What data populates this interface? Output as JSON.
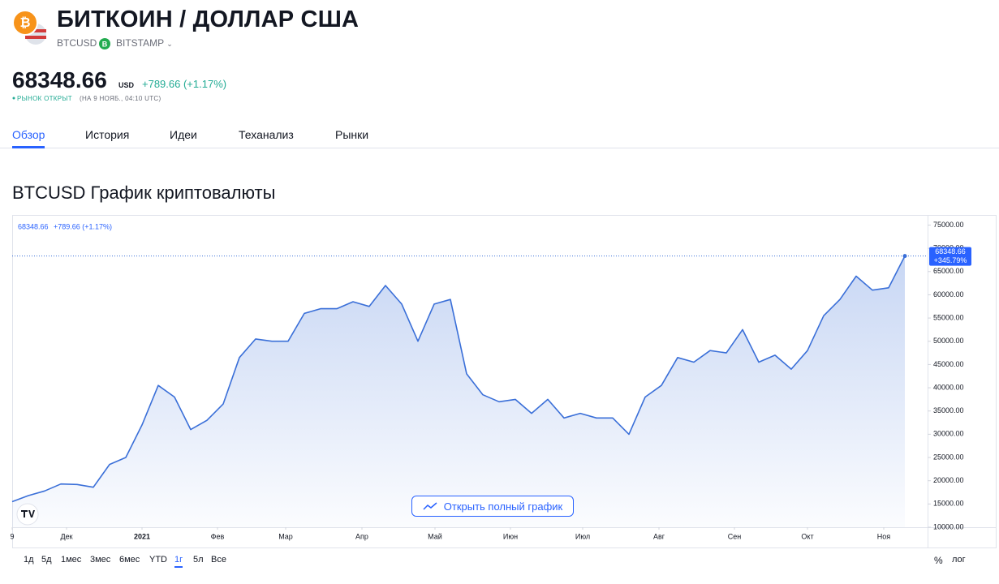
{
  "header": {
    "title": "БИТКОИН / ДОЛЛАР США",
    "symbol": "BTCUSD",
    "exchange_icon": "B",
    "exchange": "BITSTAMP",
    "logo": "₿",
    "price": "68348.66",
    "currency": "USD",
    "change": "+789.66 (+1.17%)",
    "status": "РЫНОК ОТКРЫТ",
    "status_time": "(НА 9 НОЯБ., 04:10 UTC)"
  },
  "tabs": [
    "Обзор",
    "История",
    "Идеи",
    "Теханализ",
    "Рынки"
  ],
  "chart_data": {
    "type": "area",
    "title": "BTCUSD График криптовалюты",
    "legend_price": "68348.66",
    "legend_change": "+789.66 (+1.17%)",
    "last_change": "+345.79%",
    "series": [
      {
        "name": "BTCUSD",
        "color": "#3a6fd8",
        "values": [
          15500,
          16800,
          17800,
          19300,
          19200,
          18600,
          23500,
          25000,
          32000,
          40500,
          38000,
          31000,
          33000,
          36500,
          46500,
          50500,
          50000,
          50000,
          56000,
          57000,
          57000,
          58500,
          57500,
          62000,
          58000,
          50000,
          58000,
          59000,
          43000,
          38500,
          37000,
          37500,
          34500,
          37500,
          33500,
          34500,
          33500,
          33500,
          30000,
          38000,
          40500,
          46500,
          45500,
          48000,
          47500,
          52500,
          45500,
          47000,
          44000,
          48000,
          55500,
          59000,
          64000,
          61000,
          61500,
          68348.66
        ]
      }
    ],
    "xlim": [
      0,
      56.4
    ],
    "xticks": [
      {
        "value": 0,
        "label": "9"
      },
      {
        "value": 3.35,
        "label": "Дек"
      },
      {
        "value": 8,
        "label": "2021"
      },
      {
        "value": 12.65,
        "label": "Фев"
      },
      {
        "value": 16.85,
        "label": "Мар"
      },
      {
        "value": 21.55,
        "label": "Апр"
      },
      {
        "value": 26.05,
        "label": "Май"
      },
      {
        "value": 30.7,
        "label": "Июн"
      },
      {
        "value": 35.15,
        "label": "Июл"
      },
      {
        "value": 39.85,
        "label": "Авг"
      },
      {
        "value": 44.5,
        "label": "Сен"
      },
      {
        "value": 49,
        "label": "Окт"
      },
      {
        "value": 53.7,
        "label": "Ноя"
      }
    ],
    "ylim": [
      10000,
      77000
    ],
    "yticks": [
      {
        "value": 10000,
        "label": "10000.00"
      },
      {
        "value": 15000,
        "label": "15000.00"
      },
      {
        "value": 20000,
        "label": "20000.00"
      },
      {
        "value": 25000,
        "label": "25000.00"
      },
      {
        "value": 30000,
        "label": "30000.00"
      },
      {
        "value": 35000,
        "label": "35000.00"
      },
      {
        "value": 40000,
        "label": "40000.00"
      },
      {
        "value": 45000,
        "label": "45000.00"
      },
      {
        "value": 50000,
        "label": "50000.00"
      },
      {
        "value": 55000,
        "label": "55000.00"
      },
      {
        "value": 60000,
        "label": "60000.00"
      },
      {
        "value": 65000,
        "label": "65000.00"
      },
      {
        "value": 70000,
        "label": "70000.00"
      },
      {
        "value": 75000,
        "label": "75000.00"
      }
    ],
    "grid": false
  },
  "open_button": "Открыть полный график",
  "ranges": [
    "1д",
    "5д",
    "1мес",
    "3мес",
    "6мес",
    "YTD",
    "1г",
    "5л",
    "Все"
  ],
  "active_range": 6,
  "scale_options": [
    "%",
    "лог"
  ]
}
